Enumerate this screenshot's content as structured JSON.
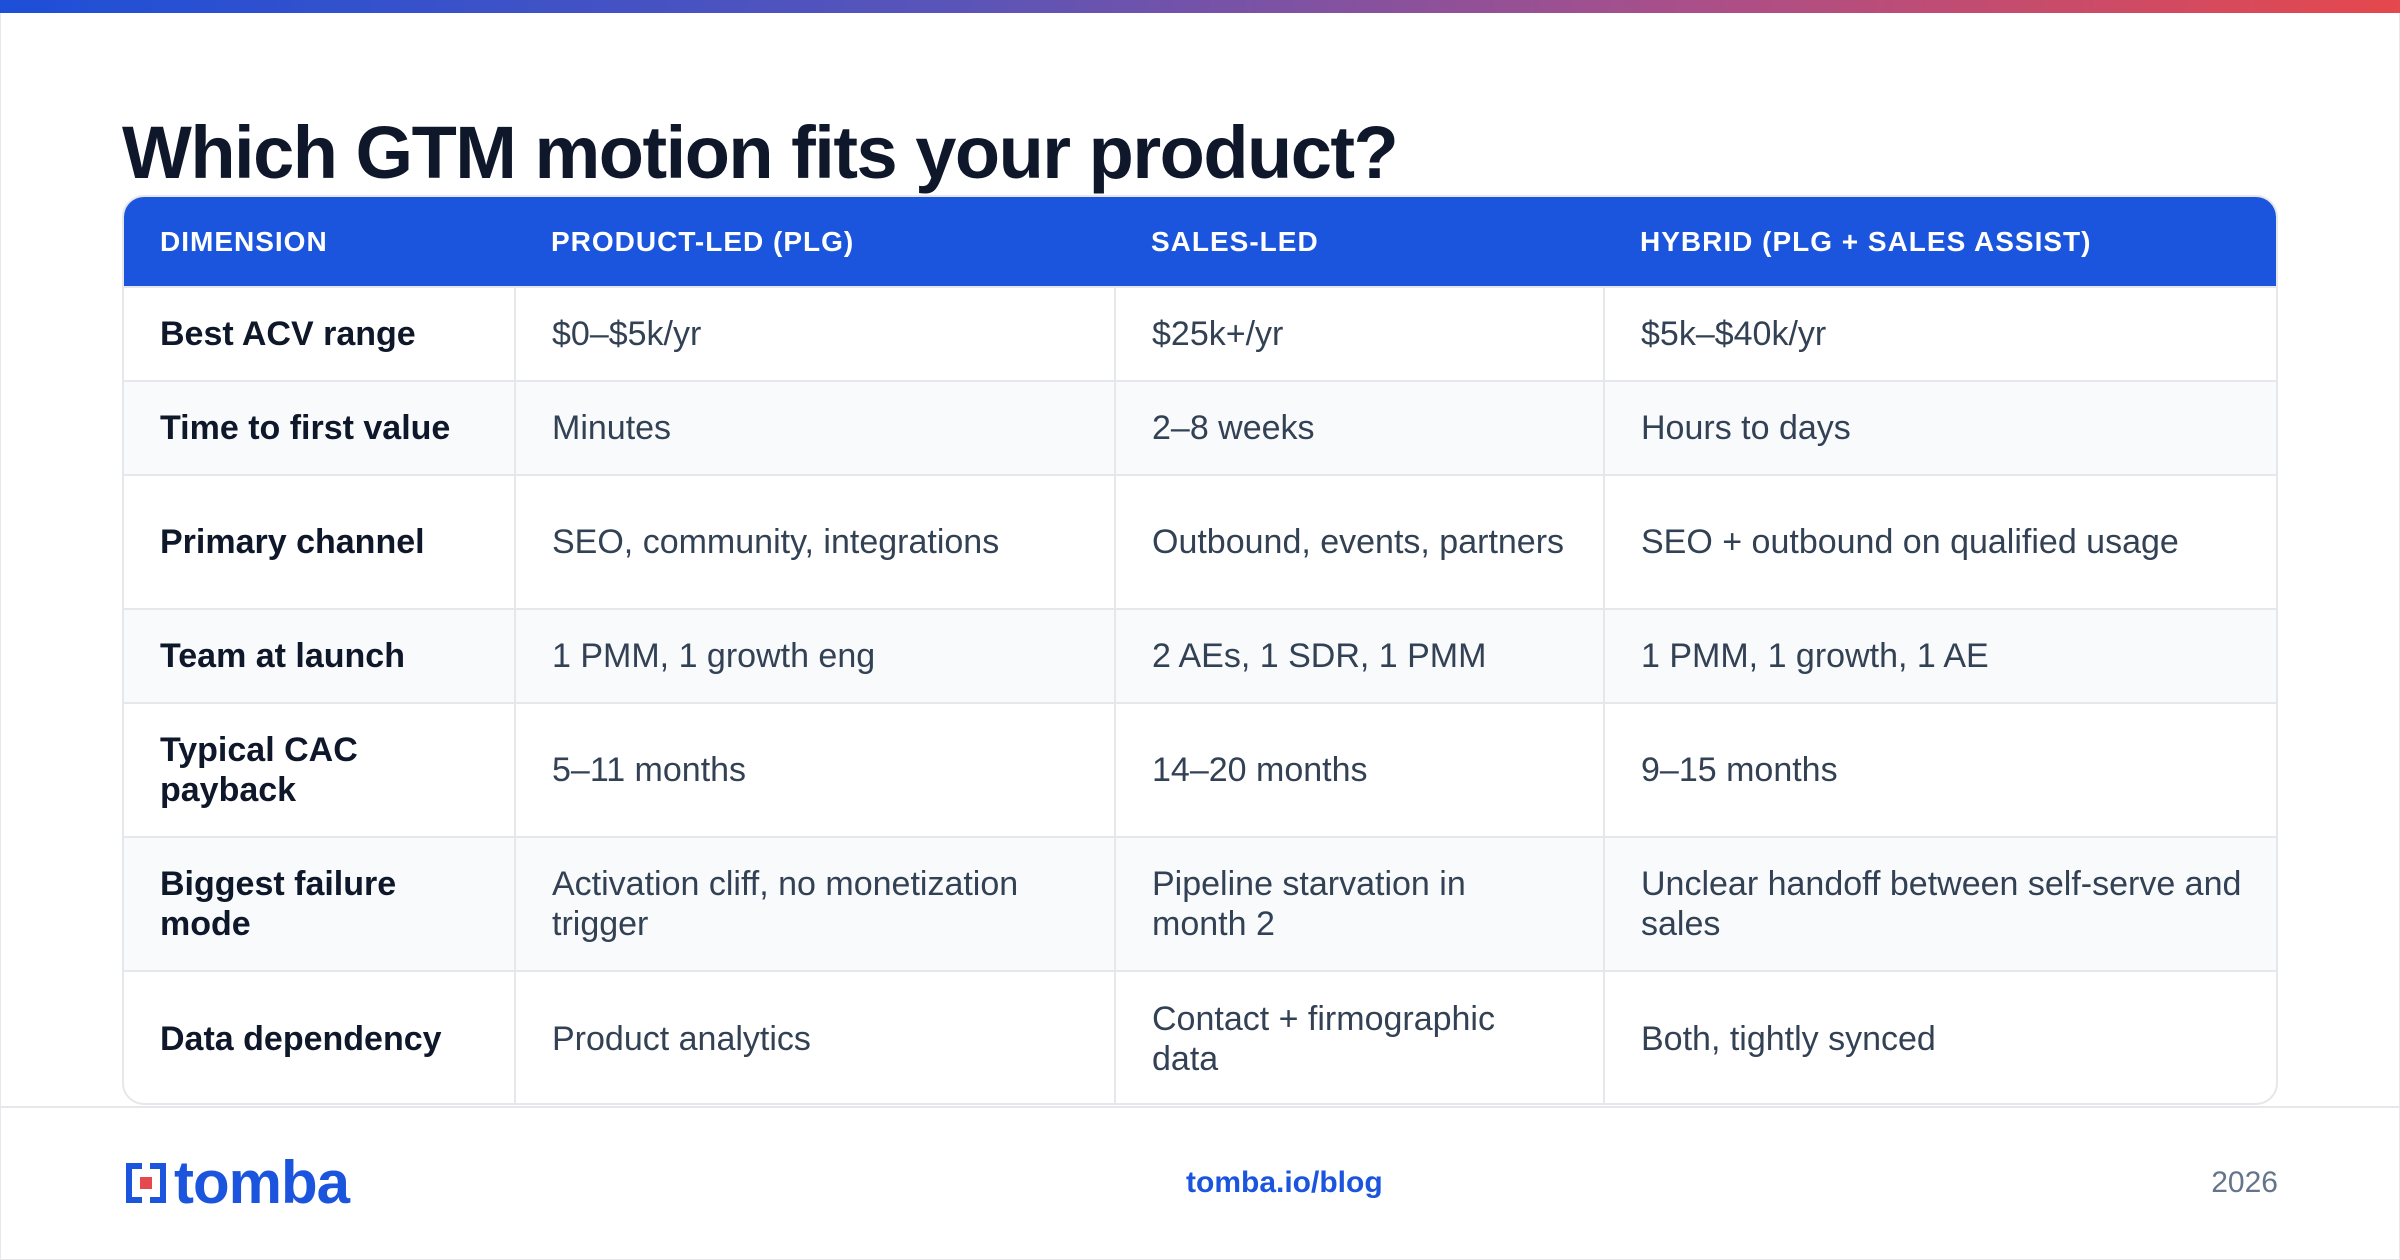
{
  "title": "Which GTM motion fits your product?",
  "table": {
    "headers": [
      "DIMENSION",
      "PRODUCT-LED (PLG)",
      "SALES-LED",
      "HYBRID (PLG + SALES ASSIST)"
    ],
    "rows": [
      [
        "Best ACV range",
        "$0–$5k/yr",
        "$25k+/yr",
        "$5k–$40k/yr"
      ],
      [
        "Time to first value",
        "Minutes",
        "2–8 weeks",
        "Hours to days"
      ],
      [
        "Primary channel",
        "SEO, community, integrations",
        "Outbound, events, partners",
        "SEO + outbound on qualified usage"
      ],
      [
        "Team at launch",
        "1 PMM, 1 growth eng",
        "2 AEs, 1 SDR, 1 PMM",
        "1 PMM, 1 growth, 1 AE"
      ],
      [
        "Typical CAC payback",
        "5–11 months",
        "14–20 months",
        "9–15 months"
      ],
      [
        "Biggest failure mode",
        "Activation cliff, no monetization trigger",
        "Pipeline starvation in month 2",
        "Unclear handoff between self-serve and sales"
      ],
      [
        "Data dependency",
        "Product analytics",
        "Contact + firmographic data",
        "Both, tightly synced"
      ]
    ]
  },
  "footer": {
    "logo_text": "tomba",
    "link": "tomba.io/blog",
    "year": "2026"
  },
  "colors": {
    "accent": "#1b55dd",
    "gradient_start": "#1d4fd8",
    "gradient_end": "#e5484d",
    "logo_red": "#e5484d"
  }
}
